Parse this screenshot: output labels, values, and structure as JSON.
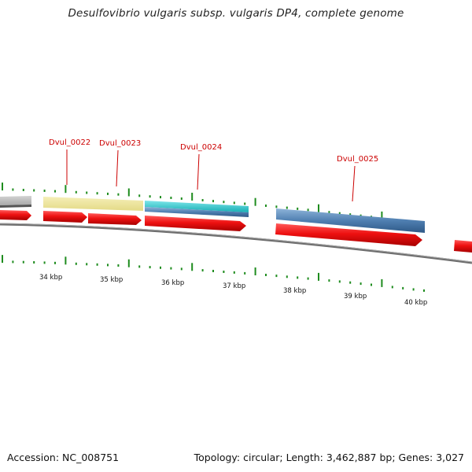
{
  "title": "Desulfovibrio vulgaris subsp. vulgaris DP4, complete genome",
  "footer": {
    "accession": "Accession: NC_008751",
    "topology": "Topology: circular; Length: 3,462,887 bp; Genes: 3,027"
  },
  "colors": {
    "cds_red": "#ee1111",
    "backbone": "#6e6e6e",
    "tick_green": "#1e8c1e",
    "label_red": "#cc0000",
    "gene_blue": "#4f7fb1",
    "gene_cyan": "#22c3c8",
    "gene_yellow": "#ece49a",
    "gene_grey": "#bdbdbd"
  },
  "gene_labels": [
    "Dvul_0022",
    "Dvul_0023",
    "Dvul_0024",
    "Dvul_0025"
  ],
  "scale_labels": [
    "34 kbp",
    "35 kbp",
    "36 kbp",
    "37 kbp",
    "38 kbp",
    "39 kbp",
    "40 kbp"
  ]
}
